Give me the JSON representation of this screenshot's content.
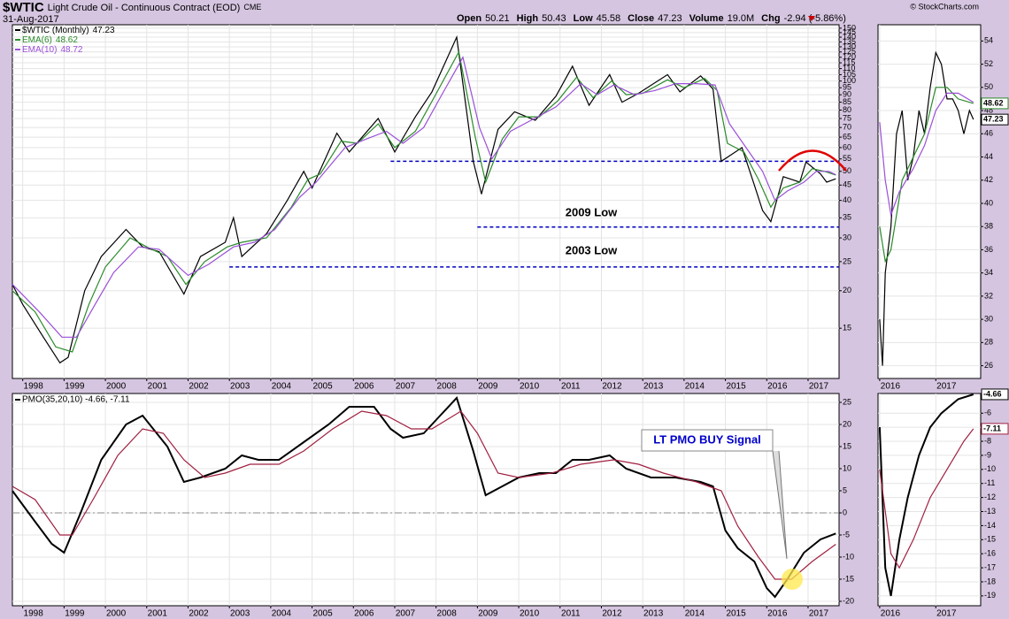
{
  "header": {
    "symbol": "$WTIC",
    "name": "Light Crude Oil - Continuous Contract (EOD)",
    "exchange": "CME",
    "date": "31-Aug-2017",
    "credit": "© StockCharts.com",
    "quote": [
      {
        "label": "Open",
        "value": "50.21"
      },
      {
        "label": "High",
        "value": "50.43"
      },
      {
        "label": "Low",
        "value": "45.58"
      },
      {
        "label": "Close",
        "value": "47.23"
      },
      {
        "label": "Volume",
        "value": "19.0M"
      },
      {
        "label": "Chg",
        "value": "-2.94 (-5.86%)"
      }
    ]
  },
  "chart_data": [
    {
      "type": "line",
      "yscale": "log",
      "grid": true,
      "xlim": [
        1997.75,
        2017.75
      ],
      "ylim": [
        10.2,
        154
      ],
      "xticks": [
        1998,
        1999,
        2000,
        2001,
        2002,
        2003,
        2004,
        2005,
        2006,
        2007,
        2008,
        2009,
        2010,
        2011,
        2012,
        2013,
        2014,
        2015,
        2016,
        2017
      ],
      "yticks": [
        15,
        20,
        25,
        30,
        35,
        40,
        45,
        50,
        55,
        60,
        65,
        70,
        75,
        80,
        85,
        90,
        95,
        100,
        105,
        110,
        115,
        120,
        125,
        130,
        135,
        140,
        145,
        150
      ],
      "series": [
        {
          "name": "$WTIC (Monthly)",
          "color": "#000000",
          "x": [
            1997.75,
            1998.0,
            1998.5,
            1998.9,
            1999.1,
            1999.5,
            1999.9,
            2000.5,
            2000.9,
            2001.3,
            2001.9,
            2002.3,
            2002.9,
            2003.1,
            2003.3,
            2003.9,
            2004.4,
            2004.8,
            2005.0,
            2005.6,
            2005.9,
            2006.6,
            2007.0,
            2007.5,
            2007.9,
            2008.5,
            2008.9,
            2009.1,
            2009.5,
            2009.9,
            2010.4,
            2010.9,
            2011.3,
            2011.7,
            2012.2,
            2012.5,
            2012.9,
            2013.6,
            2013.9,
            2014.4,
            2014.7,
            2014.9,
            2015.4,
            2015.7,
            2015.9,
            2016.1,
            2016.4,
            2016.8,
            2016.95,
            2017.3,
            2017.45,
            2017.67
          ],
          "values": [
            21,
            18,
            14,
            11.5,
            12,
            20,
            26,
            32,
            28,
            27,
            19.5,
            26,
            29,
            35,
            26,
            31,
            40,
            50,
            44,
            67,
            58,
            75,
            58,
            76,
            92,
            140,
            54,
            42,
            69,
            79,
            74,
            89,
            112,
            83,
            105,
            85,
            91,
            105,
            92,
            104,
            94,
            54,
            60,
            45,
            37,
            34,
            48,
            46,
            53.7,
            49,
            46,
            47.23
          ]
        },
        {
          "name": "EMA(6)",
          "color": "#2a8a2a",
          "x": [
            1997.75,
            1998.3,
            1998.8,
            1999.2,
            1999.6,
            2000.0,
            2000.6,
            2001.0,
            2001.5,
            2001.95,
            2002.4,
            2002.95,
            2003.3,
            2003.9,
            2004.5,
            2004.9,
            2005.2,
            2005.7,
            2006.1,
            2006.6,
            2007.0,
            2007.5,
            2007.95,
            2008.55,
            2008.95,
            2009.2,
            2009.6,
            2010.0,
            2010.5,
            2010.95,
            2011.4,
            2011.8,
            2012.25,
            2012.6,
            2013.0,
            2013.6,
            2014.0,
            2014.5,
            2014.8,
            2015.05,
            2015.45,
            2015.8,
            2016.1,
            2016.4,
            2016.8,
            2017.1,
            2017.4,
            2017.67
          ],
          "values": [
            20,
            17,
            13,
            12.5,
            18,
            24,
            30,
            28,
            26,
            21,
            25,
            28,
            29,
            30,
            38,
            47,
            49,
            63,
            62,
            72,
            60,
            68,
            88,
            125,
            65,
            46,
            64,
            76,
            76,
            86,
            103,
            88,
            100,
            90,
            91,
            101,
            95,
            102,
            93,
            62,
            58,
            47,
            38,
            44,
            46,
            51,
            50,
            48.62
          ]
        },
        {
          "name": "EMA(10)",
          "color": "#9b4fd8",
          "x": [
            1997.75,
            1998.4,
            1998.95,
            1999.3,
            1999.75,
            2000.2,
            2000.8,
            2001.3,
            2002.0,
            2002.5,
            2003.1,
            2003.6,
            2004.1,
            2004.7,
            2005.1,
            2005.8,
            2006.3,
            2006.8,
            2007.2,
            2007.7,
            2008.1,
            2008.65,
            2009.05,
            2009.35,
            2009.8,
            2010.3,
            2010.9,
            2011.5,
            2011.9,
            2012.3,
            2012.8,
            2013.3,
            2013.8,
            2014.3,
            2014.75,
            2015.1,
            2015.5,
            2015.9,
            2016.2,
            2016.5,
            2016.9,
            2017.2,
            2017.5,
            2017.67
          ],
          "values": [
            21,
            17,
            14,
            14,
            18,
            23,
            28,
            27.5,
            22.5,
            24.5,
            28,
            29,
            32,
            41,
            46,
            60,
            64,
            68,
            62,
            70,
            88,
            120,
            70,
            55,
            68,
            74,
            82,
            98,
            90,
            97,
            90,
            93,
            98,
            98,
            97,
            72,
            60,
            50,
            40,
            43,
            46,
            50,
            50,
            48.72
          ]
        }
      ],
      "hlines": [
        {
          "value": 54,
          "start": 2006.9
        },
        {
          "value": 32.6,
          "start": 2009.0
        },
        {
          "value": 24,
          "start": 2003.0
        }
      ],
      "hline_color": "#0000c0",
      "annotations": [
        "2009 Low",
        "2003 Low"
      ]
    },
    {
      "type": "line",
      "yscale": "linear",
      "grid": true,
      "xlim": [
        2015.97,
        2017.8
      ],
      "ylim": [
        24.9,
        55.4
      ],
      "xticks": [
        2016,
        2017
      ],
      "yticks": [
        26,
        28,
        30,
        32,
        34,
        36,
        38,
        40,
        42,
        44,
        46,
        48,
        50,
        52,
        54
      ],
      "series": [
        {
          "name": "$WTIC (Monthly)",
          "color": "#000000",
          "flag_last": true,
          "x": [
            2016.0,
            2016.05,
            2016.1,
            2016.2,
            2016.3,
            2016.4,
            2016.5,
            2016.6,
            2016.7,
            2016.8,
            2016.9,
            2017.0,
            2017.1,
            2017.2,
            2017.3,
            2017.4,
            2017.5,
            2017.6,
            2017.67
          ],
          "values": [
            30,
            26,
            34,
            38,
            46,
            48,
            42,
            44,
            48,
            46,
            50,
            53,
            52,
            49,
            49,
            48,
            46,
            48,
            47.23
          ]
        },
        {
          "name": "EMA(6)",
          "color": "#2a8a2a",
          "flag_last": true,
          "x": [
            2016.0,
            2016.1,
            2016.2,
            2016.4,
            2016.6,
            2016.8,
            2017.0,
            2017.2,
            2017.4,
            2017.67
          ],
          "values": [
            38,
            35,
            36,
            42,
            44,
            46,
            50,
            50,
            49,
            48.62
          ]
        },
        {
          "name": "EMA(10)",
          "color": "#9b4fd8",
          "x": [
            2016.0,
            2016.1,
            2016.2,
            2016.35,
            2016.6,
            2016.8,
            2017.0,
            2017.2,
            2017.4,
            2017.67
          ],
          "values": [
            47,
            42,
            39,
            41,
            43,
            45,
            48,
            49.5,
            49.5,
            48.72
          ]
        }
      ]
    },
    {
      "type": "line",
      "yscale": "linear",
      "grid": true,
      "xlim": [
        1997.75,
        2017.75
      ],
      "ylim": [
        -21,
        27
      ],
      "xticks": [
        1998,
        1999,
        2000,
        2001,
        2002,
        2003,
        2004,
        2005,
        2006,
        2007,
        2008,
        2009,
        2010,
        2011,
        2012,
        2013,
        2014,
        2015,
        2016,
        2017
      ],
      "yticks": [
        -20,
        -15,
        -10,
        -5,
        0,
        5,
        10,
        15,
        20,
        25
      ],
      "refline": 0,
      "legend_text": "PMO(35,20,10) -4.66, -7.11",
      "series": [
        {
          "name": "PMO",
          "color": "#000000",
          "x": [
            1997.75,
            1998.3,
            1998.7,
            1999.0,
            1999.4,
            1999.9,
            2000.5,
            2000.9,
            2001.5,
            2001.9,
            2002.3,
            2002.9,
            2003.3,
            2003.7,
            2004.2,
            2004.8,
            2005.4,
            2005.9,
            2006.5,
            2006.9,
            2007.2,
            2007.7,
            2008.1,
            2008.5,
            2008.9,
            2009.2,
            2009.6,
            2010.0,
            2010.5,
            2010.9,
            2011.3,
            2011.7,
            2012.2,
            2012.6,
            2013.2,
            2013.8,
            2014.4,
            2014.7,
            2015.0,
            2015.3,
            2015.7,
            2016.0,
            2016.2,
            2016.5,
            2016.9,
            2017.3,
            2017.67
          ],
          "values": [
            5,
            -2,
            -7,
            -9,
            0,
            12,
            20,
            22,
            15,
            7,
            8,
            10,
            13,
            12,
            12,
            16,
            20,
            24,
            24,
            19,
            17,
            18,
            22,
            26,
            14,
            4,
            6,
            8,
            9,
            9,
            12,
            12,
            13,
            10,
            8,
            8,
            7,
            6,
            -4,
            -8,
            -11,
            -17,
            -19,
            -15,
            -9,
            -6,
            -4.66
          ]
        },
        {
          "name": "Signal",
          "color": "#a02040",
          "x": [
            1997.75,
            1998.3,
            1998.9,
            1999.2,
            1999.7,
            2000.3,
            2000.9,
            2001.4,
            2001.9,
            2002.4,
            2002.9,
            2003.5,
            2004.2,
            2004.8,
            2005.5,
            2006.2,
            2006.8,
            2007.4,
            2007.9,
            2008.6,
            2009.0,
            2009.5,
            2010.0,
            2010.8,
            2011.5,
            2012.3,
            2012.9,
            2013.5,
            2014.3,
            2014.9,
            2015.3,
            2015.8,
            2016.2,
            2016.6,
            2017.1,
            2017.67
          ],
          "values": [
            6,
            3,
            -5,
            -5,
            3,
            13,
            19,
            18,
            12,
            8,
            9,
            11,
            11,
            14,
            19,
            23,
            22,
            19,
            19,
            23,
            18,
            9,
            8,
            9,
            11,
            12,
            11,
            9,
            7,
            5,
            -3,
            -10,
            -15,
            -15,
            -11,
            -7.11
          ]
        }
      ],
      "annotations": [
        "LT PMO BUY Signal"
      ]
    },
    {
      "type": "line",
      "yscale": "linear",
      "grid": true,
      "xlim": [
        2015.97,
        2017.8
      ],
      "ylim": [
        -19.7,
        -4.6
      ],
      "xticks": [
        2016,
        2017
      ],
      "yticks": [
        -19,
        -18,
        -17,
        -16,
        -15,
        -14,
        -13,
        -12,
        -11,
        -10,
        -9,
        -8,
        -7,
        -6
      ],
      "series": [
        {
          "name": "PMO",
          "color": "#000000",
          "flag_last": true,
          "x": [
            2016.0,
            2016.1,
            2016.2,
            2016.35,
            2016.5,
            2016.7,
            2016.9,
            2017.1,
            2017.4,
            2017.67
          ],
          "values": [
            -7,
            -17,
            -19,
            -15,
            -12,
            -9,
            -7,
            -6,
            -5,
            -4.66
          ]
        },
        {
          "name": "Signal",
          "color": "#a02040",
          "flag_last": true,
          "x": [
            2016.0,
            2016.2,
            2016.35,
            2016.6,
            2016.9,
            2017.2,
            2017.5,
            2017.67
          ],
          "values": [
            -10,
            -16,
            -17,
            -15,
            -12,
            -10,
            -8,
            -7.11
          ]
        }
      ]
    }
  ]
}
